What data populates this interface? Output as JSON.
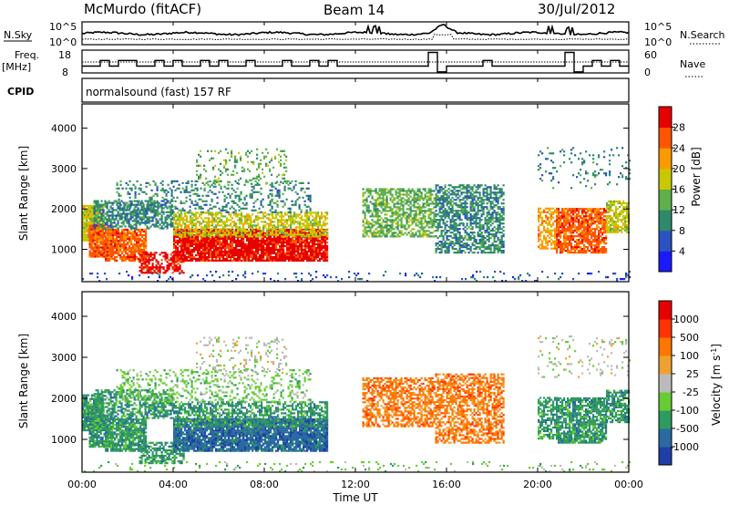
{
  "header": {
    "station": "McMurdo (fitACF)",
    "beam": "Beam 14",
    "date": "30/Jul/2012",
    "cpid_label": "CPID",
    "cpid_text": "normalsound (fast) 157 RF"
  },
  "strips": {
    "nsky_label": "N.Sky",
    "nsky_ticks": [
      "10^5",
      "10^0"
    ],
    "nsearch_label": "N.Search",
    "nsearch_ticks": [
      "10^5",
      "10^0"
    ],
    "freq_label": "Freq.",
    "freq_unit": "[MHz]",
    "freq_ticks": [
      "18",
      "8"
    ],
    "nave_label": "Nave",
    "nave_ticks": [
      "60",
      "0"
    ]
  },
  "xaxis": {
    "label": "Time UT",
    "ticks": [
      "00:00",
      "04:00",
      "08:00",
      "12:00",
      "16:00",
      "20:00",
      "00:00"
    ]
  },
  "chart_data": [
    {
      "type": "heatmap",
      "panel": "power",
      "ylabel": "Slant Range [km]",
      "yticks": [
        "1000",
        "2000",
        "3000",
        "4000"
      ],
      "ylim": [
        200,
        4600
      ],
      "xlim_hours": [
        0,
        24
      ],
      "colorbar": {
        "label": "Power [dB]",
        "ticks": [
          "4",
          "8",
          "12",
          "16",
          "20",
          "24",
          "28"
        ],
        "colors": [
          "#1a1aff",
          "#2a52c0",
          "#2f8a6a",
          "#5fb04a",
          "#c8c800",
          "#ff9900",
          "#ff5500",
          "#e60000"
        ]
      }
    },
    {
      "type": "heatmap",
      "panel": "velocity",
      "ylabel": "Slant Range [km]",
      "yticks": [
        "1000",
        "2000",
        "3000",
        "4000"
      ],
      "ylim": [
        200,
        4600
      ],
      "xlim_hours": [
        0,
        24
      ],
      "colorbar": {
        "label": "Velocity [m s",
        "label_sup": "-1",
        "label_end": "]",
        "ticks": [
          "1000",
          "500",
          "100",
          "25",
          "-25",
          "-100",
          "-500",
          "-1000"
        ],
        "colors": [
          "#1f3fa8",
          "#2a6aa0",
          "#2f9a60",
          "#66cc33",
          "#bbbbbb",
          "#f0a030",
          "#ff7700",
          "#ff3300",
          "#e60000"
        ]
      }
    }
  ]
}
